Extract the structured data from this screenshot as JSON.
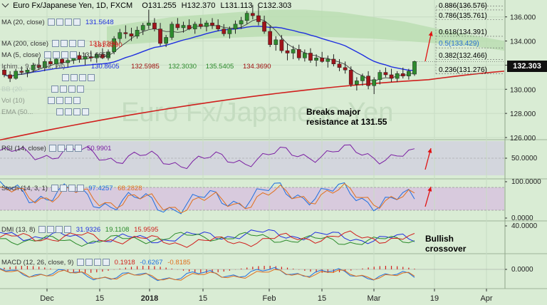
{
  "header": {
    "instrument": "Euro Fx/Japanese Yen, 1D, FXCM",
    "open": "O131.255",
    "high": "H132.370",
    "low": "L131.113",
    "close": "C132.303"
  },
  "indicators": [
    {
      "label": "MA (20, close)",
      "value": "131.5648",
      "color": "#1f2fe0"
    },
    {
      "label": "MA (200, close)",
      "value": "131.3290",
      "color": "#d0201e"
    },
    {
      "label": "MA (5, close)",
      "value": "131.6658",
      "color": "#333333"
    },
    {
      "label": "Ichim... 9, 26, 52, 26)",
      "value": "",
      "color": "#333333"
    },
    {
      "label": "BB (20...",
      "value": "",
      "color": "#333333"
    },
    {
      "label": "Vol (10)",
      "value": "",
      "color": "#333333"
    },
    {
      "label": "EMA (50...",
      "value": "",
      "color": "#333333"
    }
  ],
  "ichimoku_values": [
    {
      "value": "130.8605",
      "color": "#1f2fe0"
    },
    {
      "value": "132.5985",
      "color": "#a01010"
    },
    {
      "value": "132.3030",
      "color": "#2a8a2a"
    },
    {
      "value": "135.5405",
      "color": "#2a8a2a"
    },
    {
      "value": "134.3690",
      "color": "#a01010"
    }
  ],
  "annotations": {
    "breakout": "Breaks major\nresistance at 131.55",
    "crossover": "Bullish\ncrossover"
  },
  "fib_levels": [
    {
      "label": "0.886(136.576)",
      "price": 136.576
    },
    {
      "label": "0.786(135.761)",
      "price": 135.761
    },
    {
      "label": "0.618(134.391)",
      "price": 134.391
    },
    {
      "label": "0.5(133.429)",
      "price": 133.429
    },
    {
      "label": "0.382(132.466)",
      "price": 132.466
    },
    {
      "label": "0.236(131.276)",
      "price": 131.276
    }
  ],
  "last_price": "132.303",
  "panels": {
    "rsi": {
      "label": "RSI (14, close)",
      "value": "50.9901",
      "axis": [
        "50.0000"
      ],
      "color": "#7b1fa2"
    },
    "stoch": {
      "label": "Stoch (14, 3, 1)",
      "k": "97.4257",
      "d": "68.2828",
      "axis": [
        "100.0000",
        "0.0000"
      ],
      "k_color": "#1f6fe0",
      "d_color": "#e0701e"
    },
    "dmi": {
      "label": "DMI (13, 8)",
      "plus": "31.9326",
      "adx": "19.1108",
      "minus": "15.9595",
      "axis": [
        "40.0000"
      ],
      "plus_color": "#1f2fe0",
      "adx_color": "#2a8a2a",
      "minus_color": "#d0201e"
    },
    "macd": {
      "label": "MACD (12, 26, close, 9)",
      "hist": "0.1918",
      "macd": "-0.6267",
      "signal": "-0.8185",
      "axis": [
        "0.0000"
      ],
      "hist_color": "#d0201e",
      "macd_color": "#1f6fe0",
      "signal_color": "#e0701e"
    }
  },
  "chart_data": {
    "type": "candlestick",
    "title": "Euro Fx/Japanese Yen, 1D, FXCM",
    "price_axis_ticks": [
      "136.000",
      "134.000",
      "132.000",
      "130.000",
      "128.000",
      "126.000"
    ],
    "ylim": [
      126,
      137.4
    ],
    "x_ticks": [
      "Dec",
      "15",
      "2018",
      "15",
      "Feb",
      "15",
      "Mar",
      "19",
      "Apr"
    ],
    "candles": [
      {
        "o": 131.6,
        "h": 132.0,
        "l": 131.0,
        "c": 131.2
      },
      {
        "o": 131.2,
        "h": 131.5,
        "l": 130.6,
        "c": 130.9
      },
      {
        "o": 130.9,
        "h": 131.7,
        "l": 130.8,
        "c": 131.5
      },
      {
        "o": 131.5,
        "h": 131.9,
        "l": 131.2,
        "c": 131.4
      },
      {
        "o": 131.4,
        "h": 131.8,
        "l": 131.0,
        "c": 131.6
      },
      {
        "o": 131.6,
        "h": 132.2,
        "l": 131.4,
        "c": 132.0
      },
      {
        "o": 132.0,
        "h": 132.6,
        "l": 131.6,
        "c": 131.8
      },
      {
        "o": 131.8,
        "h": 132.5,
        "l": 131.5,
        "c": 132.3
      },
      {
        "o": 132.3,
        "h": 132.8,
        "l": 131.9,
        "c": 132.1
      },
      {
        "o": 132.1,
        "h": 132.6,
        "l": 131.7,
        "c": 132.5
      },
      {
        "o": 132.5,
        "h": 132.9,
        "l": 132.0,
        "c": 132.2
      },
      {
        "o": 132.2,
        "h": 132.7,
        "l": 131.8,
        "c": 132.4
      },
      {
        "o": 132.4,
        "h": 133.0,
        "l": 132.1,
        "c": 132.8
      },
      {
        "o": 132.8,
        "h": 133.1,
        "l": 132.2,
        "c": 132.5
      },
      {
        "o": 132.5,
        "h": 133.0,
        "l": 132.0,
        "c": 132.7
      },
      {
        "o": 132.7,
        "h": 133.2,
        "l": 132.3,
        "c": 132.6
      },
      {
        "o": 132.6,
        "h": 133.0,
        "l": 132.2,
        "c": 132.9
      },
      {
        "o": 132.9,
        "h": 133.4,
        "l": 132.5,
        "c": 132.6
      },
      {
        "o": 132.6,
        "h": 133.3,
        "l": 132.4,
        "c": 133.1
      },
      {
        "o": 133.1,
        "h": 134.4,
        "l": 132.9,
        "c": 134.2
      },
      {
        "o": 134.2,
        "h": 135.0,
        "l": 133.8,
        "c": 134.7
      },
      {
        "o": 134.7,
        "h": 135.3,
        "l": 134.2,
        "c": 134.6
      },
      {
        "o": 134.6,
        "h": 135.1,
        "l": 134.0,
        "c": 134.4
      },
      {
        "o": 134.4,
        "h": 135.2,
        "l": 134.2,
        "c": 134.9
      },
      {
        "o": 134.9,
        "h": 135.5,
        "l": 134.5,
        "c": 135.3
      },
      {
        "o": 135.3,
        "h": 136.6,
        "l": 135.0,
        "c": 135.5
      },
      {
        "o": 135.5,
        "h": 135.9,
        "l": 134.8,
        "c": 135.0
      },
      {
        "o": 135.0,
        "h": 135.5,
        "l": 133.6,
        "c": 133.8
      },
      {
        "o": 133.8,
        "h": 134.5,
        "l": 133.5,
        "c": 134.3
      },
      {
        "o": 134.3,
        "h": 135.6,
        "l": 134.1,
        "c": 135.4
      },
      {
        "o": 135.4,
        "h": 135.9,
        "l": 134.9,
        "c": 135.1
      },
      {
        "o": 135.1,
        "h": 135.6,
        "l": 134.7,
        "c": 135.3
      },
      {
        "o": 135.3,
        "h": 135.8,
        "l": 134.9,
        "c": 135.0
      },
      {
        "o": 135.0,
        "h": 135.6,
        "l": 134.6,
        "c": 135.4
      },
      {
        "o": 135.4,
        "h": 135.9,
        "l": 135.0,
        "c": 135.2
      },
      {
        "o": 135.2,
        "h": 135.7,
        "l": 134.8,
        "c": 135.5
      },
      {
        "o": 135.5,
        "h": 135.9,
        "l": 135.0,
        "c": 135.3
      },
      {
        "o": 135.3,
        "h": 135.8,
        "l": 134.8,
        "c": 135.0
      },
      {
        "o": 135.0,
        "h": 135.4,
        "l": 134.4,
        "c": 134.6
      },
      {
        "o": 134.6,
        "h": 135.2,
        "l": 134.2,
        "c": 135.0
      },
      {
        "o": 135.0,
        "h": 135.7,
        "l": 134.6,
        "c": 135.4
      },
      {
        "o": 135.4,
        "h": 136.0,
        "l": 135.0,
        "c": 135.7
      },
      {
        "o": 135.7,
        "h": 136.5,
        "l": 135.4,
        "c": 136.3
      },
      {
        "o": 136.3,
        "h": 137.0,
        "l": 135.8,
        "c": 136.1
      },
      {
        "o": 136.1,
        "h": 136.8,
        "l": 135.3,
        "c": 135.6
      },
      {
        "o": 135.6,
        "h": 136.1,
        "l": 134.6,
        "c": 134.8
      },
      {
        "o": 134.8,
        "h": 135.3,
        "l": 133.5,
        "c": 133.7
      },
      {
        "o": 133.7,
        "h": 134.4,
        "l": 133.2,
        "c": 134.1
      },
      {
        "o": 134.1,
        "h": 134.5,
        "l": 133.0,
        "c": 133.2
      },
      {
        "o": 133.2,
        "h": 133.8,
        "l": 132.4,
        "c": 133.0
      },
      {
        "o": 133.0,
        "h": 133.6,
        "l": 132.5,
        "c": 133.3
      },
      {
        "o": 133.3,
        "h": 133.7,
        "l": 132.4,
        "c": 132.6
      },
      {
        "o": 132.6,
        "h": 133.3,
        "l": 132.3,
        "c": 133.0
      },
      {
        "o": 133.0,
        "h": 133.4,
        "l": 132.2,
        "c": 132.4
      },
      {
        "o": 132.4,
        "h": 132.9,
        "l": 131.9,
        "c": 132.6
      },
      {
        "o": 132.6,
        "h": 133.1,
        "l": 132.2,
        "c": 132.3
      },
      {
        "o": 132.3,
        "h": 132.8,
        "l": 131.8,
        "c": 132.5
      },
      {
        "o": 132.5,
        "h": 132.9,
        "l": 131.9,
        "c": 132.1
      },
      {
        "o": 132.1,
        "h": 132.5,
        "l": 131.5,
        "c": 131.8
      },
      {
        "o": 131.8,
        "h": 132.3,
        "l": 131.3,
        "c": 131.6
      },
      {
        "o": 131.6,
        "h": 131.9,
        "l": 130.2,
        "c": 130.4
      },
      {
        "o": 130.4,
        "h": 131.0,
        "l": 129.9,
        "c": 130.7
      },
      {
        "o": 130.7,
        "h": 131.3,
        "l": 130.3,
        "c": 131.1
      },
      {
        "o": 131.1,
        "h": 131.5,
        "l": 130.0,
        "c": 130.3
      },
      {
        "o": 130.3,
        "h": 131.0,
        "l": 129.6,
        "c": 130.8
      },
      {
        "o": 130.8,
        "h": 131.6,
        "l": 130.4,
        "c": 131.4
      },
      {
        "o": 131.4,
        "h": 131.8,
        "l": 131.0,
        "c": 131.2
      },
      {
        "o": 131.2,
        "h": 131.7,
        "l": 130.6,
        "c": 130.9
      },
      {
        "o": 130.9,
        "h": 131.5,
        "l": 130.6,
        "c": 131.3
      },
      {
        "o": 131.3,
        "h": 131.8,
        "l": 130.9,
        "c": 131.1
      },
      {
        "o": 131.1,
        "h": 131.7,
        "l": 130.8,
        "c": 131.5
      },
      {
        "o": 131.255,
        "h": 132.37,
        "l": 131.113,
        "c": 132.303
      }
    ]
  }
}
